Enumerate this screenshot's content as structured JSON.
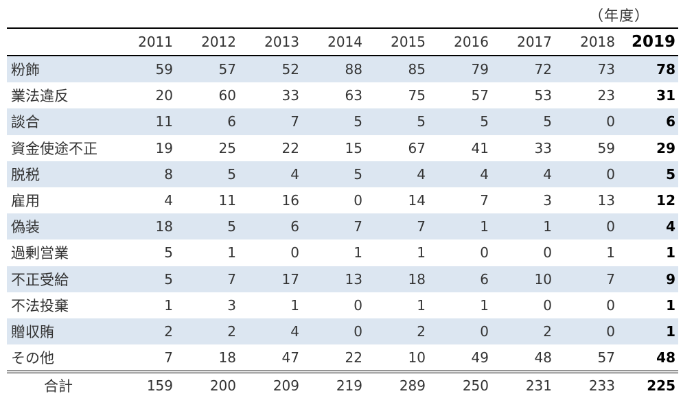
{
  "unit_label": "（年度）",
  "chart_data": {
    "type": "table",
    "columns": [
      "2011",
      "2012",
      "2013",
      "2014",
      "2015",
      "2016",
      "2017",
      "2018",
      "2019"
    ],
    "highlight_column": "2019",
    "rows": [
      {
        "label": "粉飾",
        "values": [
          59,
          57,
          52,
          88,
          85,
          79,
          72,
          73,
          78
        ]
      },
      {
        "label": "業法違反",
        "values": [
          20,
          60,
          33,
          63,
          75,
          57,
          53,
          23,
          31
        ]
      },
      {
        "label": "談合",
        "values": [
          11,
          6,
          7,
          5,
          5,
          5,
          5,
          0,
          6
        ]
      },
      {
        "label": "資金使途不正",
        "values": [
          19,
          25,
          22,
          15,
          67,
          41,
          33,
          59,
          29
        ]
      },
      {
        "label": "脱税",
        "values": [
          8,
          5,
          4,
          5,
          4,
          4,
          4,
          0,
          5
        ]
      },
      {
        "label": "雇用",
        "values": [
          4,
          11,
          16,
          0,
          14,
          7,
          3,
          13,
          12
        ]
      },
      {
        "label": "偽装",
        "values": [
          18,
          5,
          6,
          7,
          7,
          1,
          1,
          0,
          4
        ]
      },
      {
        "label": "過剰営業",
        "values": [
          5,
          1,
          0,
          1,
          1,
          0,
          0,
          1,
          1
        ]
      },
      {
        "label": "不正受給",
        "values": [
          5,
          7,
          17,
          13,
          18,
          6,
          10,
          7,
          9
        ]
      },
      {
        "label": "不法投棄",
        "values": [
          1,
          3,
          1,
          0,
          1,
          1,
          0,
          0,
          1
        ]
      },
      {
        "label": "贈収賄",
        "values": [
          2,
          2,
          4,
          0,
          2,
          0,
          2,
          0,
          1
        ]
      },
      {
        "label": "その他",
        "values": [
          7,
          18,
          47,
          22,
          10,
          49,
          48,
          57,
          48
        ]
      }
    ],
    "total": {
      "label": "合計",
      "values": [
        159,
        200,
        209,
        219,
        289,
        250,
        231,
        233,
        225
      ]
    },
    "row_band_color": "#dce6f1",
    "text_color": "#333333"
  }
}
